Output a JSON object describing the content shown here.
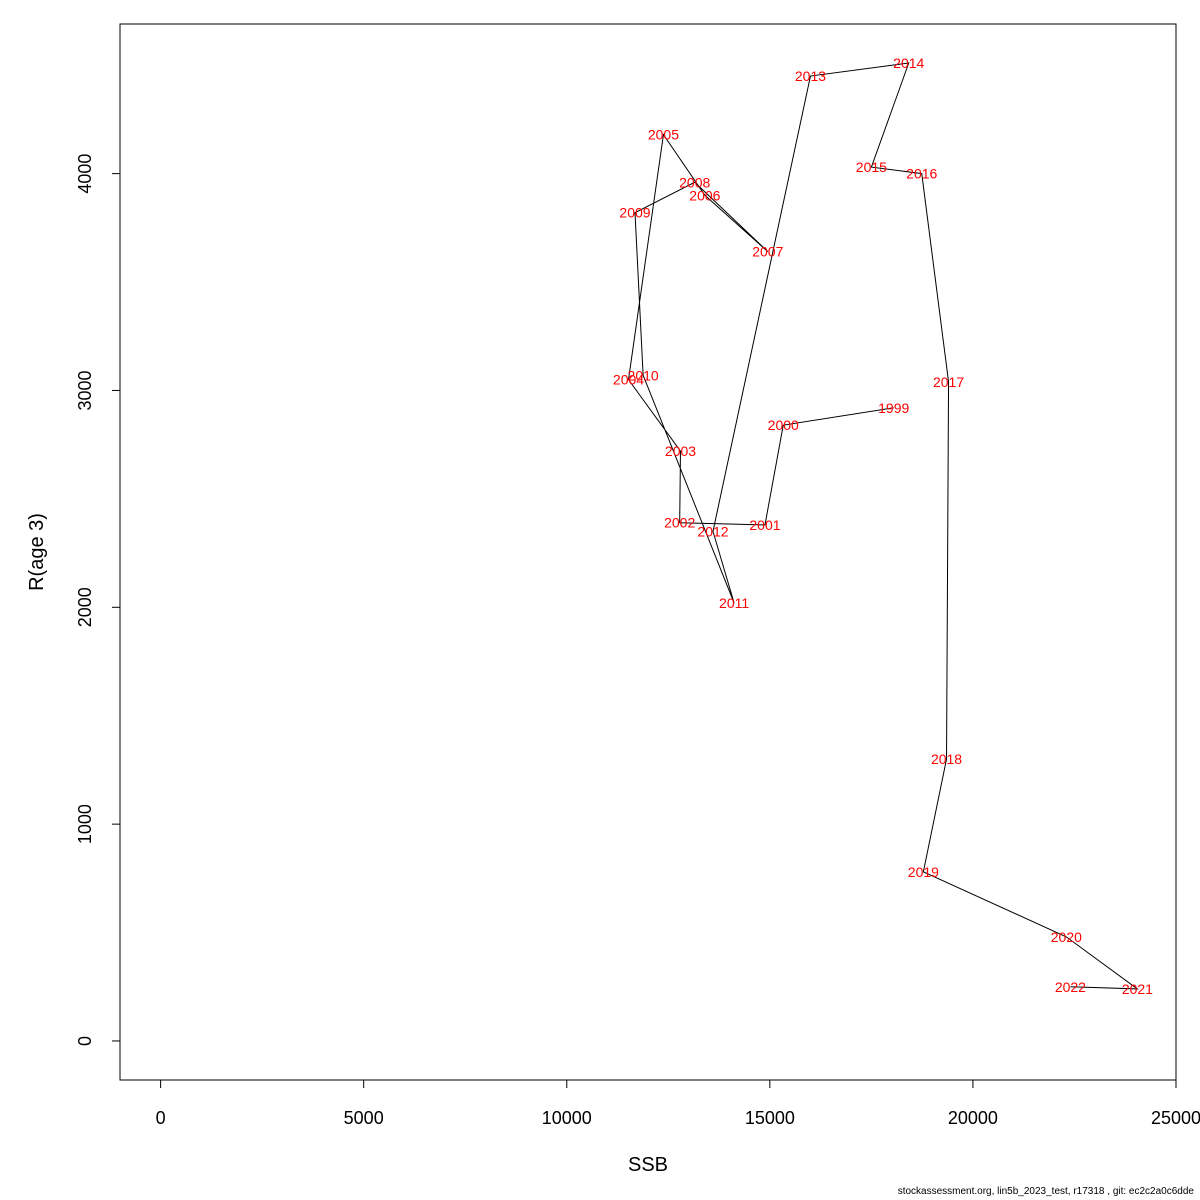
{
  "chart_data": {
    "type": "line",
    "xlabel": "SSB",
    "ylabel": "R(age 3)",
    "xlim": [
      -1000,
      25000
    ],
    "ylim": [
      -180,
      4690
    ],
    "x_ticks": [
      0,
      5000,
      10000,
      15000,
      20000,
      25000
    ],
    "y_ticks": [
      0,
      1000,
      2000,
      3000,
      4000
    ],
    "line_color": "#000000",
    "label_color": "#ff0000",
    "grid": false,
    "points": [
      {
        "label": "1999",
        "x": 18050,
        "y": 2920
      },
      {
        "label": "2000",
        "x": 15330,
        "y": 2840
      },
      {
        "label": "2001",
        "x": 14880,
        "y": 2380
      },
      {
        "label": "2002",
        "x": 12780,
        "y": 2390
      },
      {
        "label": "2003",
        "x": 12800,
        "y": 2720
      },
      {
        "label": "2004",
        "x": 11520,
        "y": 3050
      },
      {
        "label": "2005",
        "x": 12380,
        "y": 4180
      },
      {
        "label": "2006",
        "x": 13400,
        "y": 3900
      },
      {
        "label": "2007",
        "x": 14950,
        "y": 3640
      },
      {
        "label": "2008",
        "x": 13150,
        "y": 3960
      },
      {
        "label": "2009",
        "x": 11680,
        "y": 3820
      },
      {
        "label": "2010",
        "x": 11880,
        "y": 3070
      },
      {
        "label": "2011",
        "x": 14120,
        "y": 2020
      },
      {
        "label": "2012",
        "x": 13600,
        "y": 2350
      },
      {
        "label": "2013",
        "x": 16000,
        "y": 4450
      },
      {
        "label": "2014",
        "x": 18420,
        "y": 4510
      },
      {
        "label": "2015",
        "x": 17500,
        "y": 4030
      },
      {
        "label": "2016",
        "x": 18740,
        "y": 4000
      },
      {
        "label": "2017",
        "x": 19400,
        "y": 3040
      },
      {
        "label": "2018",
        "x": 19350,
        "y": 1300
      },
      {
        "label": "2019",
        "x": 18780,
        "y": 780
      },
      {
        "label": "2020",
        "x": 22300,
        "y": 480
      },
      {
        "label": "2021",
        "x": 24050,
        "y": 240
      },
      {
        "label": "2022",
        "x": 22400,
        "y": 250
      }
    ]
  },
  "footer": "stockassessment.org, lin5b_2023_test, r17318 , git: ec2c2a0c6dde"
}
